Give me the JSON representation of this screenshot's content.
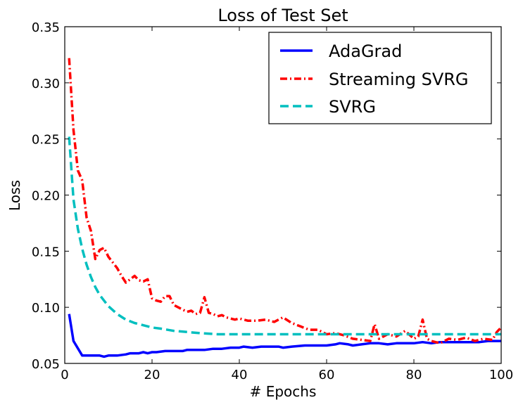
{
  "chart_data": {
    "type": "line",
    "title": "Loss of Test Set",
    "xlabel": "# Epochs",
    "ylabel": "Loss",
    "xlim": [
      0,
      100
    ],
    "ylim": [
      0.05,
      0.35
    ],
    "xticks": [
      0,
      20,
      40,
      60,
      80,
      100
    ],
    "yticks": [
      0.05,
      0.1,
      0.15,
      0.2,
      0.25,
      0.3,
      0.35
    ],
    "xtick_labels": [
      "0",
      "20",
      "40",
      "60",
      "80",
      "100"
    ],
    "ytick_labels": [
      "0.05",
      "0.10",
      "0.15",
      "0.20",
      "0.25",
      "0.30",
      "0.35"
    ],
    "grid": false,
    "legend_position": "top-right",
    "series": [
      {
        "name": "AdaGrad",
        "color": "#0000ff",
        "style": "solid",
        "x": [
          1,
          2,
          4,
          6,
          8,
          9,
          10,
          12,
          14,
          15,
          17,
          18,
          19,
          20,
          21,
          23,
          25,
          27,
          28,
          30,
          32,
          34,
          36,
          38,
          40,
          41,
          43,
          45,
          47,
          49,
          50,
          52,
          55,
          57,
          60,
          62,
          63,
          65,
          66,
          68,
          70,
          72,
          74,
          76,
          78,
          80,
          82,
          84,
          86,
          88,
          90,
          93,
          95,
          97,
          98,
          100
        ],
        "y": [
          0.094,
          0.07,
          0.057,
          0.057,
          0.057,
          0.056,
          0.057,
          0.057,
          0.058,
          0.059,
          0.059,
          0.06,
          0.059,
          0.06,
          0.06,
          0.061,
          0.061,
          0.061,
          0.062,
          0.062,
          0.062,
          0.063,
          0.063,
          0.064,
          0.064,
          0.065,
          0.064,
          0.065,
          0.065,
          0.065,
          0.064,
          0.065,
          0.066,
          0.066,
          0.066,
          0.067,
          0.068,
          0.067,
          0.066,
          0.067,
          0.068,
          0.068,
          0.067,
          0.068,
          0.068,
          0.068,
          0.069,
          0.068,
          0.069,
          0.069,
          0.069,
          0.069,
          0.069,
          0.07,
          0.07,
          0.07
        ]
      },
      {
        "name": "Streaming SVRG",
        "color": "#ff0000",
        "style": "dashdot",
        "x": [
          1,
          2,
          3,
          4,
          5,
          6,
          7,
          8,
          9,
          10,
          11,
          12,
          13,
          14,
          15,
          16,
          17,
          18,
          19,
          20,
          21,
          22,
          23,
          24,
          25,
          26,
          27,
          28,
          29,
          30,
          31,
          32,
          33,
          34,
          35,
          36,
          37,
          38,
          39,
          40,
          42,
          44,
          46,
          48,
          50,
          52,
          54,
          56,
          58,
          60,
          62,
          64,
          66,
          68,
          70,
          71,
          72,
          74,
          76,
          78,
          80,
          81,
          82,
          83,
          84,
          86,
          88,
          90,
          92,
          94,
          96,
          98,
          99,
          100
        ],
        "y": [
          0.322,
          0.258,
          0.222,
          0.213,
          0.18,
          0.168,
          0.143,
          0.151,
          0.153,
          0.145,
          0.14,
          0.135,
          0.128,
          0.122,
          0.125,
          0.128,
          0.124,
          0.123,
          0.125,
          0.108,
          0.106,
          0.105,
          0.11,
          0.11,
          0.102,
          0.1,
          0.098,
          0.096,
          0.097,
          0.094,
          0.095,
          0.109,
          0.095,
          0.094,
          0.092,
          0.093,
          0.091,
          0.09,
          0.089,
          0.09,
          0.088,
          0.088,
          0.089,
          0.087,
          0.091,
          0.086,
          0.083,
          0.08,
          0.08,
          0.076,
          0.077,
          0.075,
          0.072,
          0.071,
          0.07,
          0.085,
          0.072,
          0.076,
          0.074,
          0.079,
          0.072,
          0.074,
          0.089,
          0.072,
          0.07,
          0.068,
          0.072,
          0.071,
          0.073,
          0.07,
          0.072,
          0.071,
          0.078,
          0.082
        ]
      },
      {
        "name": "SVRG",
        "color": "#00bfbf",
        "style": "dashed",
        "x": [
          1,
          2,
          3,
          4,
          5,
          6,
          7,
          8,
          10,
          12,
          14,
          16,
          18,
          20,
          22,
          25,
          28,
          31,
          35,
          40,
          45,
          50,
          60,
          70,
          80,
          90,
          100
        ],
        "y": [
          0.252,
          0.196,
          0.17,
          0.152,
          0.138,
          0.127,
          0.118,
          0.111,
          0.101,
          0.094,
          0.089,
          0.086,
          0.084,
          0.082,
          0.081,
          0.079,
          0.078,
          0.077,
          0.076,
          0.076,
          0.076,
          0.076,
          0.076,
          0.076,
          0.076,
          0.076,
          0.076
        ]
      }
    ]
  }
}
